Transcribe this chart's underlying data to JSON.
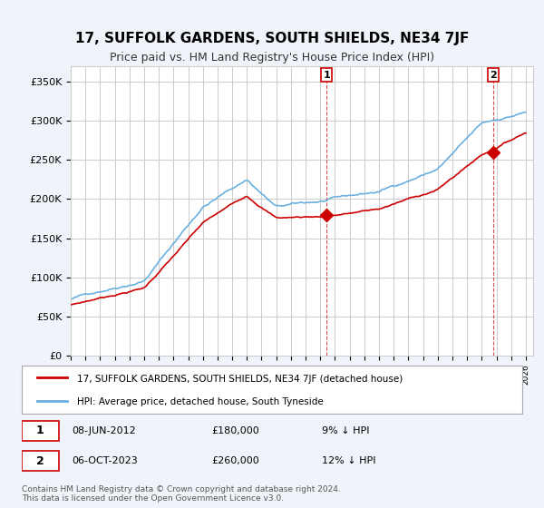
{
  "title": "17, SUFFOLK GARDENS, SOUTH SHIELDS, NE34 7JF",
  "subtitle": "Price paid vs. HM Land Registry's House Price Index (HPI)",
  "ylabel_ticks": [
    "£0",
    "£50K",
    "£100K",
    "£150K",
    "£200K",
    "£250K",
    "£300K",
    "£350K"
  ],
  "ytick_values": [
    0,
    50000,
    100000,
    150000,
    200000,
    250000,
    300000,
    350000
  ],
  "ylim": [
    0,
    370000
  ],
  "xlim_start": 1995.0,
  "xlim_end": 2026.5,
  "hpi_color": "#6ab0e0",
  "price_color": "#cc0000",
  "marker1_date": 2012.44,
  "marker1_price": 180000,
  "marker1_label": "1",
  "marker2_date": 2023.76,
  "marker2_price": 260000,
  "marker2_label": "2",
  "legend_line1": "17, SUFFOLK GARDENS, SOUTH SHIELDS, NE34 7JF (detached house)",
  "legend_line2": "HPI: Average price, detached house, South Tyneside",
  "annotation1": "08-JUN-2012          £180,000          9% ↓ HPI",
  "annotation2": "06-OCT-2023          £260,000          12% ↓ HPI",
  "footer": "Contains HM Land Registry data © Crown copyright and database right 2024.\nThis data is licensed under the Open Government Licence v3.0.",
  "bg_color": "#f0f4fa",
  "plot_bg": "#ffffff",
  "dashed_color": "#cc0000",
  "grid_color": "#cccccc"
}
